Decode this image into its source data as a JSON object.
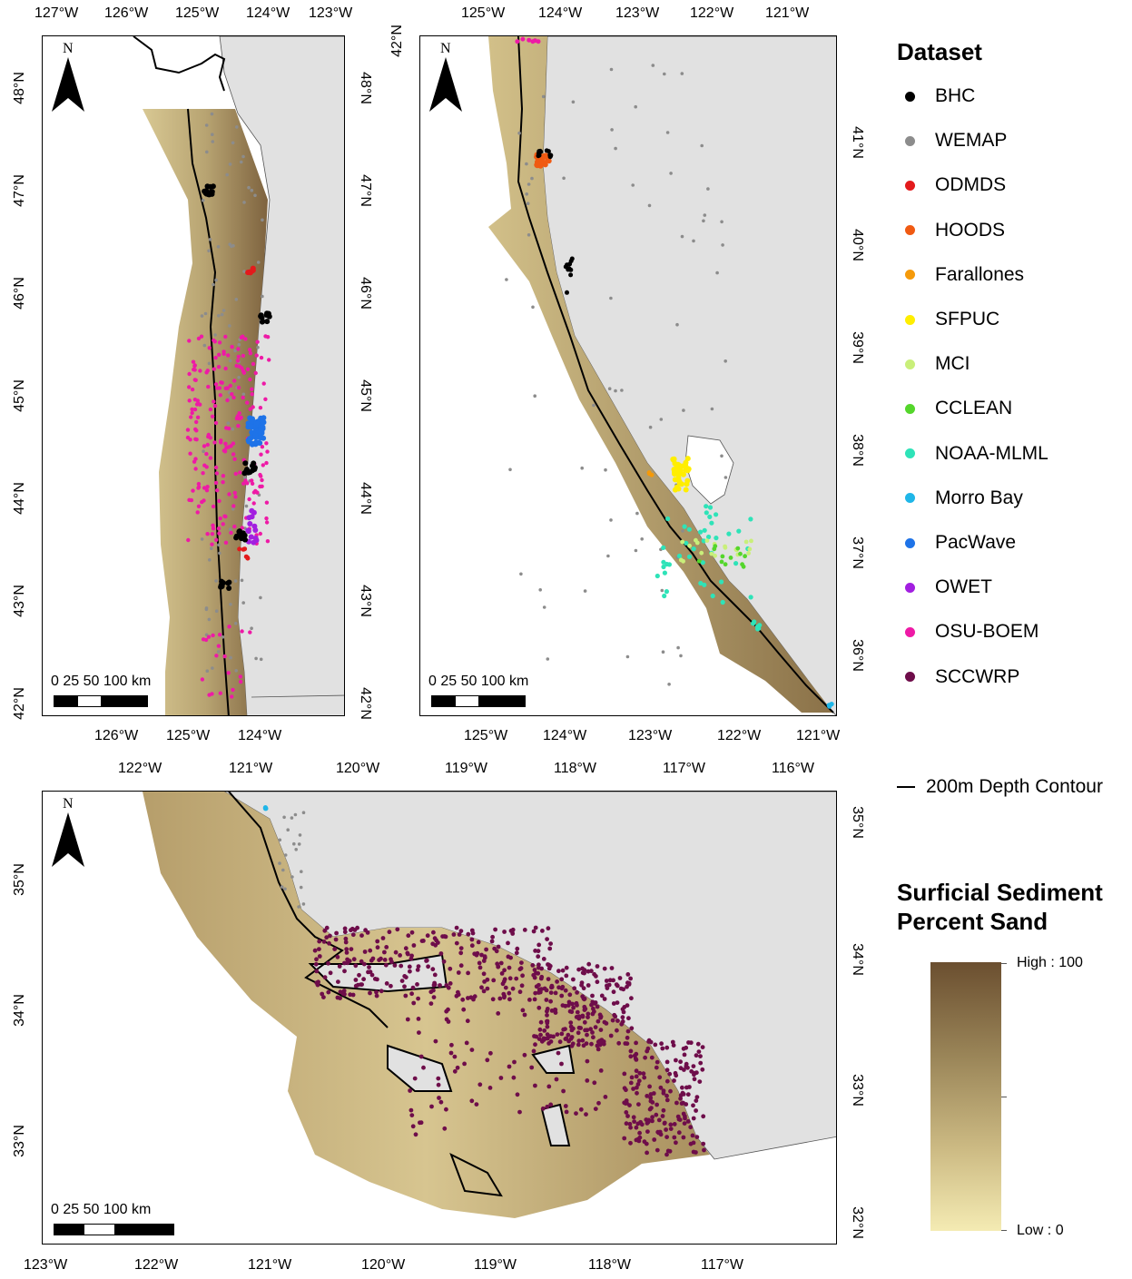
{
  "panels": {
    "nw": {
      "top_ticks": [
        "127°W",
        "126°W",
        "125°W",
        "124°W",
        "123°W"
      ],
      "bottom_ticks": [
        "126°W",
        "125°W",
        "124°W"
      ],
      "left_ticks": [
        "48°N",
        "47°N",
        "46°N",
        "45°N",
        "44°N",
        "43°N",
        "42°N"
      ],
      "right_ticks": [
        "48°N",
        "47°N",
        "46°N",
        "45°N",
        "44°N",
        "43°N",
        "42°N"
      ],
      "north_label": "N",
      "scale_label": "0  25 50        100 km"
    },
    "ne": {
      "top_ticks": [
        "125°W",
        "124°W",
        "123°W",
        "122°W",
        "121°W"
      ],
      "bottom_ticks": [
        "125°W",
        "124°W",
        "123°W",
        "122°W",
        "121°W"
      ],
      "left_ticks": [
        "42°N"
      ],
      "right_ticks": [
        "41°N",
        "40°N",
        "39°N",
        "38°N",
        "37°N",
        "36°N"
      ],
      "north_label": "N",
      "scale_label": "0  25 50        100 km"
    },
    "south": {
      "top_ticks": [
        "122°W",
        "121°W",
        "120°W",
        "119°W",
        "118°W",
        "117°W",
        "116°W"
      ],
      "bottom_ticks": [
        "123°W",
        "122°W",
        "121°W",
        "120°W",
        "119°W",
        "118°W",
        "117°W"
      ],
      "left_ticks": [
        "35°N",
        "34°N",
        "33°N"
      ],
      "right_ticks": [
        "35°N",
        "34°N",
        "33°N",
        "32°N"
      ],
      "north_label": "N",
      "scale_label": "0    25    50           100 km"
    }
  },
  "legend": {
    "title": "Dataset",
    "items": [
      {
        "label": "BHC",
        "color": "#000000"
      },
      {
        "label": "WEMAP",
        "color": "#8c8c8c"
      },
      {
        "label": "ODMDS",
        "color": "#e31a1c"
      },
      {
        "label": "HOODS",
        "color": "#f05a12"
      },
      {
        "label": "Farallones",
        "color": "#f59a0a"
      },
      {
        "label": "SFPUC",
        "color": "#ffee00"
      },
      {
        "label": "MCI",
        "color": "#c9ef7a"
      },
      {
        "label": "CCLEAN",
        "color": "#54d62b"
      },
      {
        "label": "NOAA-MLML",
        "color": "#2ee3b8"
      },
      {
        "label": "Morro Bay",
        "color": "#1fb6e8"
      },
      {
        "label": "PacWave",
        "color": "#1e73e8"
      },
      {
        "label": "OWET",
        "color": "#a21fe0"
      },
      {
        "label": "OSU-BOEM",
        "color": "#ee1aa6"
      },
      {
        "label": "SCCWRP",
        "color": "#6e0d4a"
      }
    ],
    "contour_label": "200m Depth Contour",
    "raster_title_1": "Surficial Sediment",
    "raster_title_2": "Percent Sand",
    "high_label": "High : 100",
    "low_label": "Low : 0"
  },
  "colors": {
    "land": "#e1e1e1",
    "sand_low": "#f4ebb3",
    "sand_high": "#6b4f30"
  }
}
